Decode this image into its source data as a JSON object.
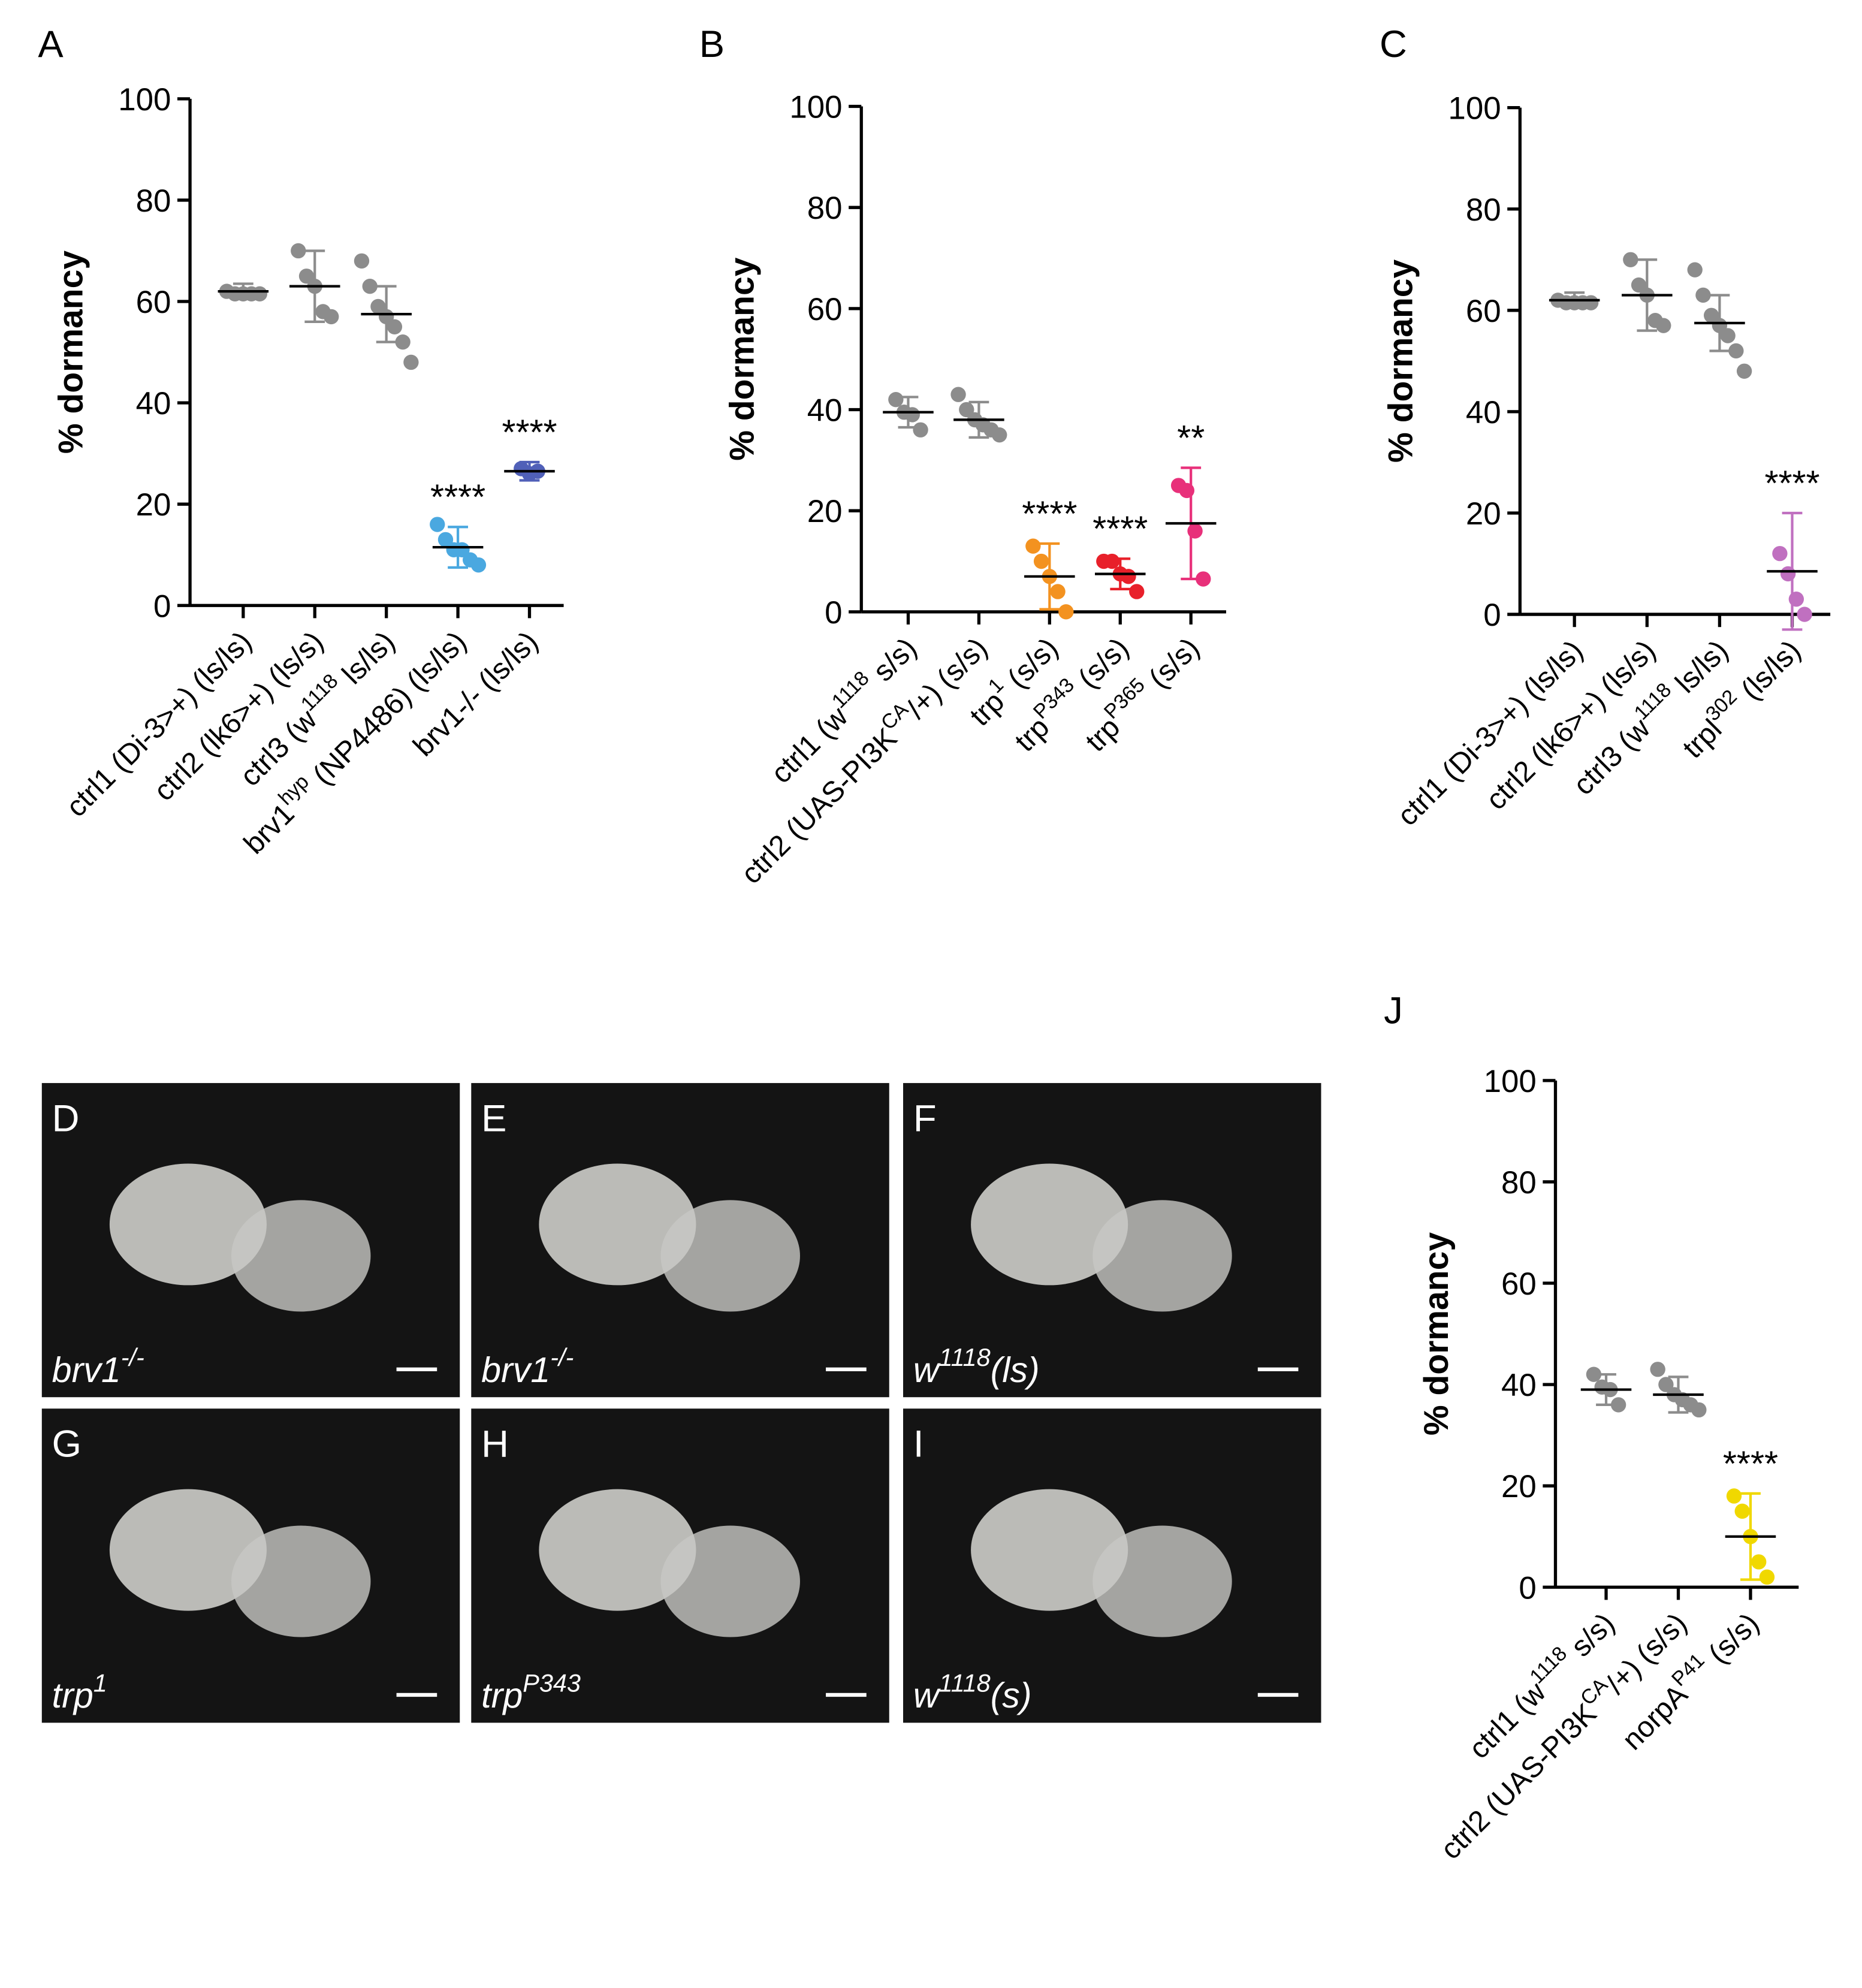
{
  "chart_data": [
    {
      "type": "dotplot",
      "title": "A",
      "ylabel": "% dormancy",
      "ylim": [
        0,
        100
      ],
      "yticks": [
        0,
        20,
        40,
        60,
        80,
        100
      ],
      "categories": [
        [
          "ctrl1 (Di-3>+) (ls/ls)"
        ],
        [
          "ctrl2 (lk6>+) (ls/s)"
        ],
        [
          "ctrl3 (w",
          "1118",
          " ls/ls)"
        ],
        [
          "brv1",
          "hyp",
          " (NP4486) (ls/ls)"
        ],
        [
          "brv1-/- (ls/ls)"
        ]
      ],
      "values": [
        [
          62,
          61.5,
          61.5,
          61.5,
          61.5
        ],
        [
          70,
          65,
          63,
          58,
          57
        ],
        [
          68,
          63,
          59,
          57,
          55,
          52,
          48
        ],
        [
          16,
          13,
          11,
          11,
          9,
          8
        ],
        [
          27,
          26,
          26.5
        ]
      ],
      "means": [
        62,
        63,
        57.5,
        11.5,
        26.5
      ],
      "sd": [
        1.5,
        7,
        5.5,
        4,
        1.8
      ],
      "colors": [
        "#8c8c8c",
        "#8c8c8c",
        "#8c8c8c",
        "#4aa8e0",
        "#5060b8"
      ],
      "annotations": [
        null,
        null,
        null,
        "****",
        "****"
      ]
    },
    {
      "type": "dotplot",
      "title": "B",
      "ylabel": "% dormancy",
      "ylim": [
        0,
        100
      ],
      "yticks": [
        0,
        20,
        40,
        60,
        80,
        100
      ],
      "categories": [
        [
          "ctrl1 (w",
          "1118",
          " s/s)"
        ],
        [
          "ctrl2 (UAS-PI3K",
          "CA",
          "/+) (s/s)"
        ],
        [
          "trp",
          "1",
          " (s/s)"
        ],
        [
          "trp",
          "P343",
          " (s/s)"
        ],
        [
          "trp",
          "P365",
          " (s/s)"
        ]
      ],
      "values": [
        [
          42,
          39.5,
          39,
          36
        ],
        [
          43,
          40,
          38,
          37,
          36,
          35
        ],
        [
          13,
          10,
          7,
          4,
          0
        ],
        [
          10,
          10,
          7.5,
          7,
          4
        ],
        [
          25,
          24,
          16,
          6.5
        ]
      ],
      "means": [
        39.5,
        38,
        7,
        7.5,
        17.5
      ],
      "sd": [
        3,
        3.5,
        6.5,
        3,
        11
      ],
      "colors": [
        "#8c8c8c",
        "#8c8c8c",
        "#f39220",
        "#e8202a",
        "#e8307a"
      ],
      "annotations": [
        null,
        null,
        "****",
        "****",
        "**"
      ]
    },
    {
      "type": "dotplot",
      "title": "C",
      "ylabel": "% dormancy",
      "ylim": [
        0,
        100
      ],
      "yticks": [
        0,
        20,
        40,
        60,
        80,
        100
      ],
      "zero_line": true,
      "categories": [
        [
          "ctrl1 (Di-3>+) (ls/ls)"
        ],
        [
          "ctrl2 (lk6>+) (ls/s)"
        ],
        [
          "ctrl3 (w",
          "1118",
          " ls/ls)"
        ],
        [
          "trpl",
          "302",
          " (ls/ls)"
        ]
      ],
      "values": [
        [
          62,
          61.5,
          61.5,
          61.5,
          61.5
        ],
        [
          70,
          65,
          63,
          58,
          57
        ],
        [
          68,
          63,
          59,
          57,
          55,
          52,
          48
        ],
        [
          12,
          8,
          3,
          0
        ]
      ],
      "means": [
        62,
        63,
        57.5,
        8.5
      ],
      "sd": [
        1.5,
        7,
        5.5,
        11.5
      ],
      "colors": [
        "#8c8c8c",
        "#8c8c8c",
        "#8c8c8c",
        "#c070c0"
      ],
      "annotations": [
        null,
        null,
        null,
        "****"
      ]
    },
    {
      "type": "dotplot",
      "title": "J",
      "ylabel": "% dormancy",
      "ylim": [
        0,
        100
      ],
      "yticks": [
        0,
        20,
        40,
        60,
        80,
        100
      ],
      "categories": [
        [
          "ctrl1 (w",
          "1118",
          " s/s)"
        ],
        [
          "ctrl2 (UAS-PI3K",
          "CA",
          "/+) (s/s)"
        ],
        [
          "norpA",
          "P41",
          " (s/s)"
        ]
      ],
      "values": [
        [
          42,
          39.5,
          39,
          36
        ],
        [
          43,
          40,
          38,
          37,
          36,
          35
        ],
        [
          18,
          15,
          10,
          5,
          2
        ]
      ],
      "means": [
        39,
        38,
        10
      ],
      "sd": [
        3,
        3.5,
        8.5
      ],
      "colors": [
        "#8c8c8c",
        "#8c8c8c",
        "#f0d800"
      ],
      "annotations": [
        null,
        null,
        "****"
      ]
    }
  ],
  "images": [
    {
      "letter": "D",
      "caption": [
        "brv1",
        "-/-"
      ]
    },
    {
      "letter": "E",
      "caption": [
        "brv1",
        "-/-"
      ]
    },
    {
      "letter": "F",
      "caption": [
        "w",
        "1118",
        "(ls)"
      ]
    },
    {
      "letter": "G",
      "caption": [
        "trp",
        "1"
      ]
    },
    {
      "letter": "H",
      "caption": [
        "trp",
        "P343"
      ]
    },
    {
      "letter": "I",
      "caption": [
        "w",
        "1118",
        "(s)"
      ]
    }
  ]
}
